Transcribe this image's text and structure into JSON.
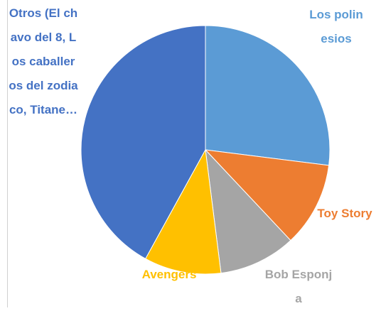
{
  "chart_data": {
    "type": "pie",
    "categories": [
      "Los polinesios",
      "Toy Story",
      "Bob Esponja",
      "Avengers",
      "Otros (El chavo del 8, Los caballeros del zodiaco, Titane…"
    ],
    "values": [
      27,
      11,
      10,
      10,
      42
    ],
    "colors": [
      "#5b9bd5",
      "#ed7d31",
      "#a5a5a5",
      "#ffc000",
      "#4472c4"
    ]
  }
}
